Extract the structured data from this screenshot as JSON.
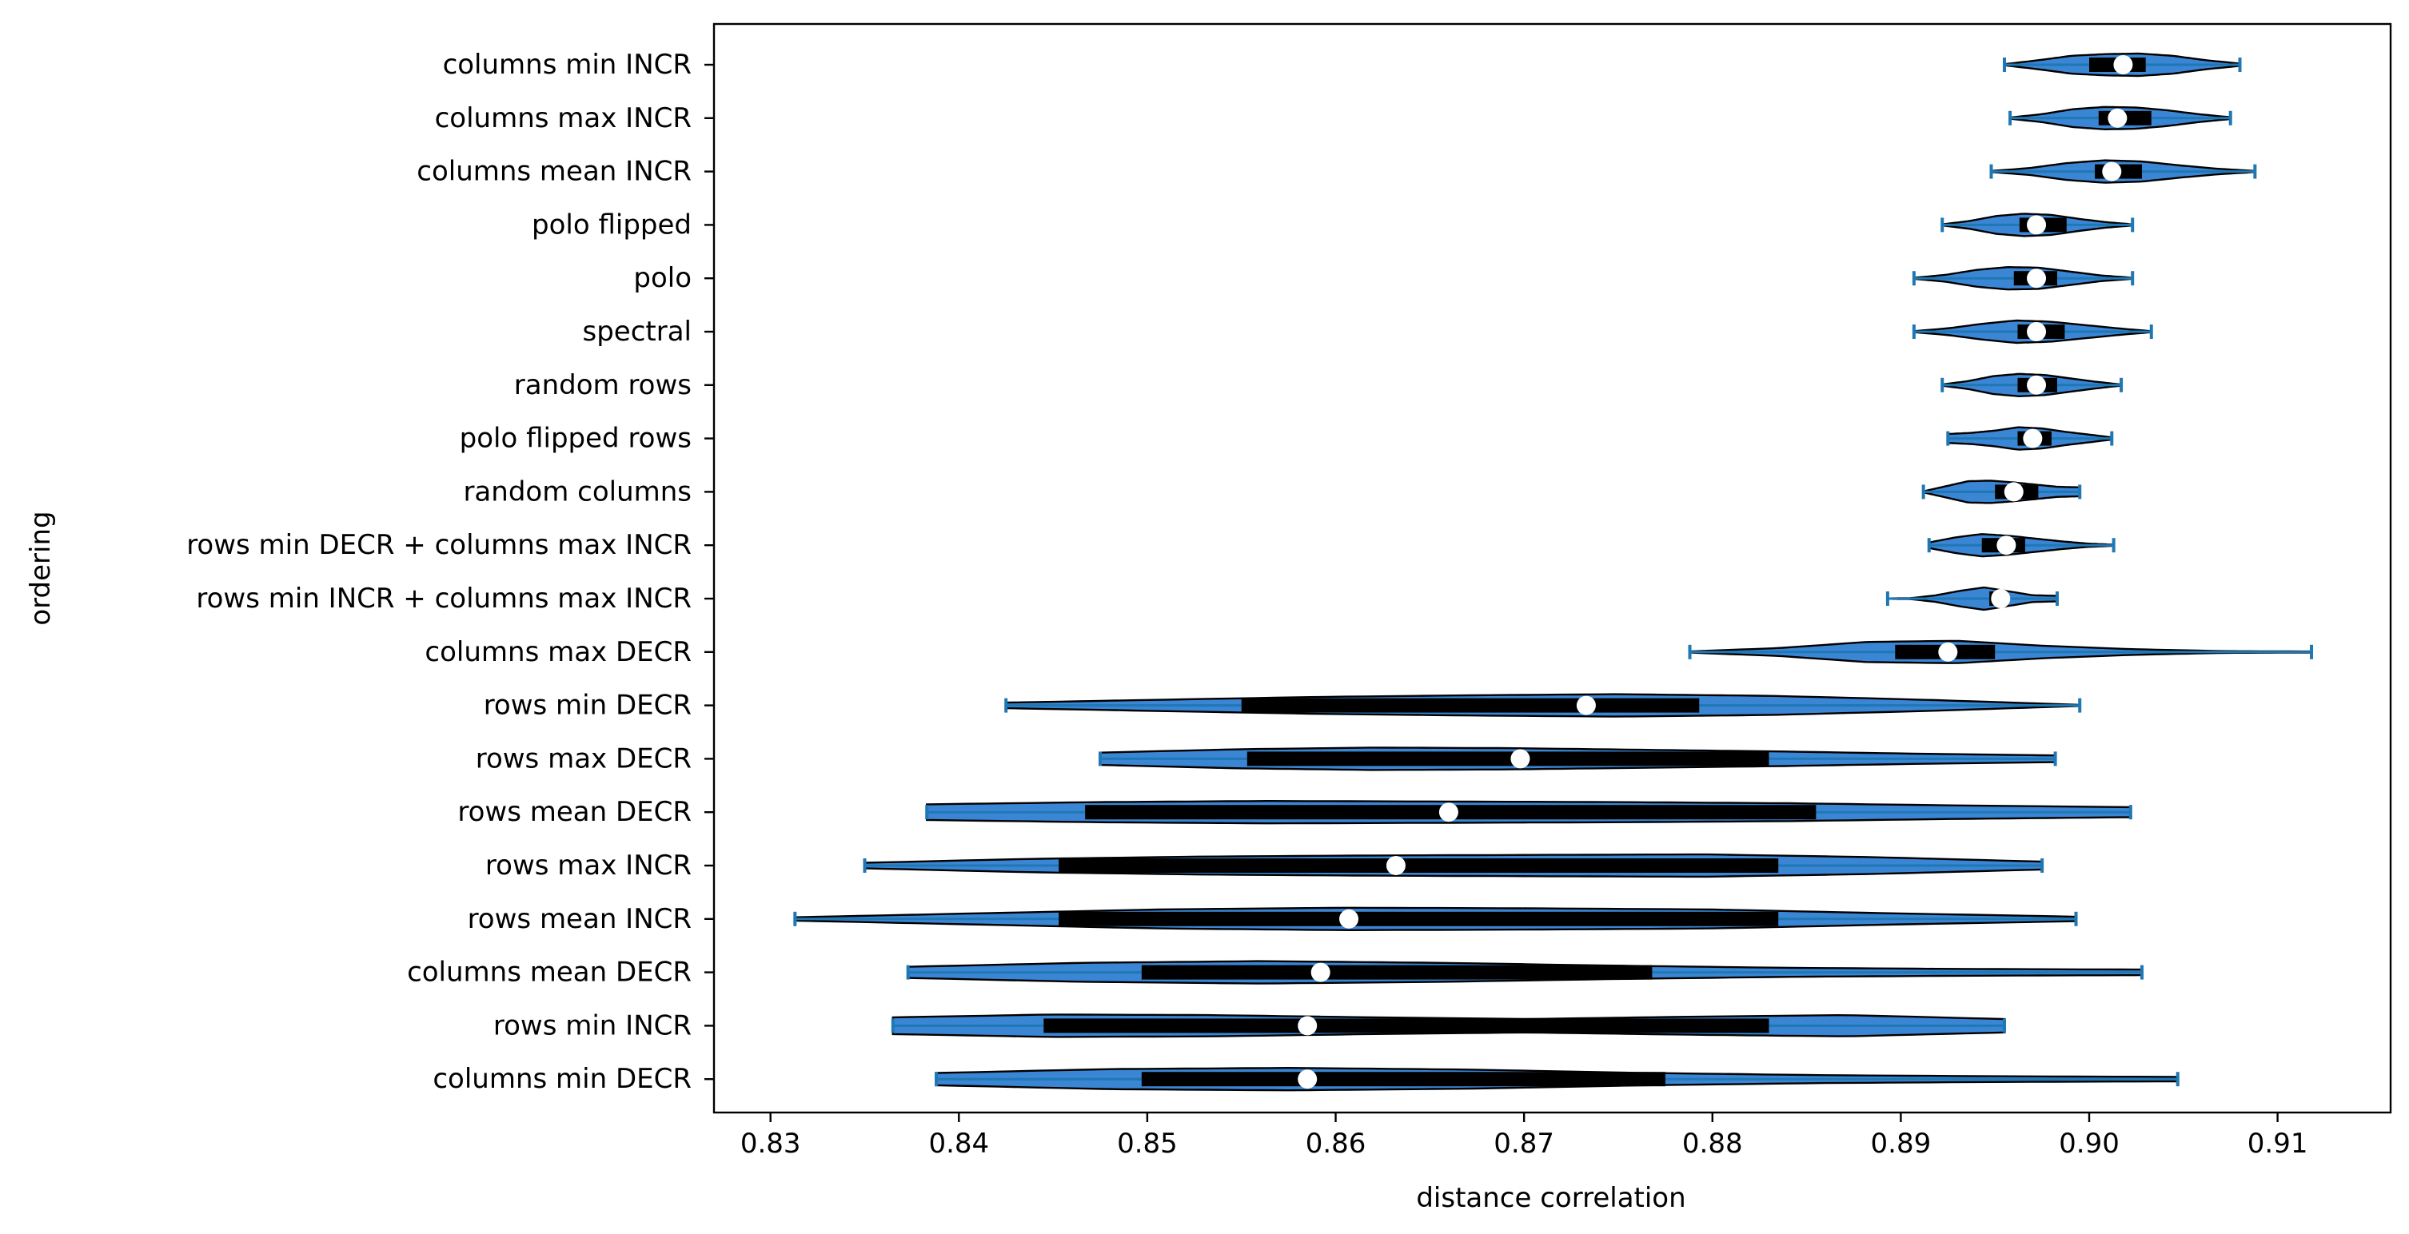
{
  "chart_data": {
    "type": "violin",
    "orientation": "horizontal",
    "title": "",
    "xlabel": "distance correlation",
    "ylabel": "ordering",
    "xlim": [
      0.827,
      0.916
    ],
    "xticks": [
      0.83,
      0.84,
      0.85,
      0.86,
      0.87,
      0.88,
      0.89,
      0.9,
      0.91
    ],
    "xtick_labels": [
      "0.83",
      "0.84",
      "0.85",
      "0.86",
      "0.87",
      "0.88",
      "0.89",
      "0.90",
      "0.91"
    ],
    "grid": false,
    "colors": {
      "violin_fill": "#3a86d4",
      "violin_edge": "#000000",
      "whisker": "#1f77b4",
      "iqr_box": "#000000",
      "median_marker": "#ffffff"
    },
    "categories": [
      {
        "label": "columns min INCR",
        "min": 0.8955,
        "q1": 0.9,
        "median": 0.9018,
        "q3": 0.903,
        "max": 0.908,
        "w": [
          0.05,
          0.4,
          0.8,
          0.95,
          1.0,
          0.8,
          0.4,
          0.1
        ]
      },
      {
        "label": "columns max INCR",
        "min": 0.8958,
        "q1": 0.9005,
        "median": 0.9015,
        "q3": 0.9033,
        "max": 0.9075,
        "w": [
          0.05,
          0.35,
          0.8,
          1.0,
          0.95,
          0.7,
          0.35,
          0.08
        ]
      },
      {
        "label": "columns mean INCR",
        "min": 0.8948,
        "q1": 0.9003,
        "median": 0.9012,
        "q3": 0.9028,
        "max": 0.9088,
        "w": [
          0.05,
          0.3,
          0.75,
          1.0,
          0.9,
          0.55,
          0.25,
          0.05
        ]
      },
      {
        "label": "polo flipped",
        "min": 0.8922,
        "q1": 0.8963,
        "median": 0.8972,
        "q3": 0.8988,
        "max": 0.9023,
        "w": [
          0.05,
          0.35,
          0.8,
          1.0,
          0.9,
          0.55,
          0.25,
          0.05
        ]
      },
      {
        "label": "polo",
        "min": 0.8907,
        "q1": 0.896,
        "median": 0.8972,
        "q3": 0.8983,
        "max": 0.9023,
        "w": [
          0.05,
          0.3,
          0.75,
          1.0,
          0.95,
          0.6,
          0.25,
          0.05
        ]
      },
      {
        "label": "spectral",
        "min": 0.8907,
        "q1": 0.8962,
        "median": 0.8972,
        "q3": 0.8987,
        "max": 0.9033,
        "w": [
          0.05,
          0.3,
          0.7,
          1.0,
          0.9,
          0.6,
          0.3,
          0.05
        ]
      },
      {
        "label": "random rows",
        "min": 0.8922,
        "q1": 0.8962,
        "median": 0.8972,
        "q3": 0.8983,
        "max": 0.9017,
        "w": [
          0.05,
          0.35,
          0.8,
          1.0,
          0.9,
          0.6,
          0.3,
          0.05
        ]
      },
      {
        "label": "polo flipped rows",
        "min": 0.8925,
        "q1": 0.8962,
        "median": 0.897,
        "q3": 0.898,
        "max": 0.9012,
        "w": [
          0.4,
          0.5,
          0.7,
          1.0,
          0.9,
          0.6,
          0.35,
          0.1
        ]
      },
      {
        "label": "random columns",
        "min": 0.8912,
        "q1": 0.895,
        "median": 0.896,
        "q3": 0.8973,
        "max": 0.8995,
        "w": [
          0.05,
          0.5,
          0.95,
          1.0,
          0.85,
          0.65,
          0.45,
          0.4
        ]
      },
      {
        "label": "rows min DECR + columns max INCR",
        "min": 0.8915,
        "q1": 0.8943,
        "median": 0.8956,
        "q3": 0.8966,
        "max": 0.9013,
        "w": [
          0.25,
          0.7,
          1.0,
          0.85,
          0.6,
          0.35,
          0.15,
          0.05
        ]
      },
      {
        "label": "rows min INCR + columns max INCR",
        "min": 0.8893,
        "q1": 0.8947,
        "median": 0.8953,
        "q3": 0.8957,
        "max": 0.8983,
        "w": [
          0.02,
          0.05,
          0.3,
          0.7,
          1.0,
          0.65,
          0.3,
          0.25
        ]
      },
      {
        "label": "columns max DECR",
        "min": 0.8788,
        "q1": 0.8897,
        "median": 0.8925,
        "q3": 0.895,
        "max": 0.9118,
        "w": [
          0.05,
          0.35,
          0.9,
          1.0,
          0.55,
          0.25,
          0.08,
          0.05
        ]
      },
      {
        "label": "rows min DECR",
        "min": 0.8425,
        "q1": 0.855,
        "median": 0.8733,
        "q3": 0.8793,
        "max": 0.8995,
        "w": [
          0.25,
          0.5,
          0.75,
          0.9,
          1.0,
          0.85,
          0.5,
          0.05
        ]
      },
      {
        "label": "rows max DECR",
        "min": 0.8475,
        "q1": 0.8553,
        "median": 0.8698,
        "q3": 0.883,
        "max": 0.8982,
        "w": [
          0.55,
          0.85,
          1.0,
          0.95,
          0.8,
          0.65,
          0.45,
          0.3
        ]
      },
      {
        "label": "rows mean DECR",
        "min": 0.8383,
        "q1": 0.8467,
        "median": 0.866,
        "q3": 0.8855,
        "max": 0.9022,
        "w": [
          0.7,
          0.9,
          1.0,
          0.95,
          0.9,
          0.8,
          0.6,
          0.45
        ]
      },
      {
        "label": "rows max INCR",
        "min": 0.835,
        "q1": 0.8453,
        "median": 0.8632,
        "q3": 0.8835,
        "max": 0.8975,
        "w": [
          0.25,
          0.6,
          0.8,
          0.9,
          0.95,
          1.0,
          0.75,
          0.35
        ]
      },
      {
        "label": "rows mean INCR",
        "min": 0.8313,
        "q1": 0.8453,
        "median": 0.8607,
        "q3": 0.8835,
        "max": 0.8993,
        "w": [
          0.15,
          0.5,
          0.85,
          1.0,
          0.95,
          0.85,
          0.5,
          0.2
        ]
      },
      {
        "label": "columns mean DECR",
        "min": 0.8373,
        "q1": 0.8497,
        "median": 0.8592,
        "q3": 0.8768,
        "max": 0.9028,
        "w": [
          0.5,
          0.85,
          1.0,
          0.85,
          0.6,
          0.4,
          0.3,
          0.25
        ]
      },
      {
        "label": "rows min INCR",
        "min": 0.8365,
        "q1": 0.8445,
        "median": 0.8585,
        "q3": 0.883,
        "max": 0.8955,
        "w": [
          0.75,
          1.0,
          0.95,
          0.75,
          0.6,
          0.8,
          0.95,
          0.6
        ]
      },
      {
        "label": "columns min DECR",
        "min": 0.8388,
        "q1": 0.8497,
        "median": 0.8585,
        "q3": 0.8775,
        "max": 0.9047,
        "w": [
          0.55,
          0.9,
          1.0,
          0.85,
          0.55,
          0.35,
          0.25,
          0.2
        ]
      }
    ]
  }
}
